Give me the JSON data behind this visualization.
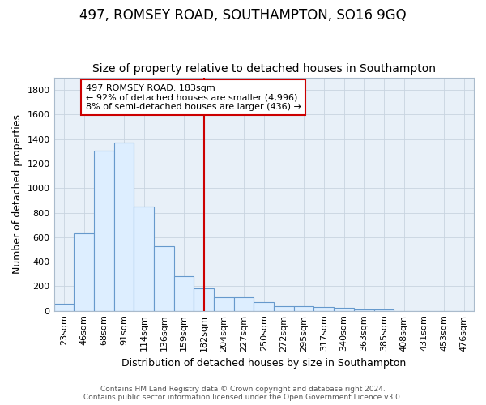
{
  "title": "497, ROMSEY ROAD, SOUTHAMPTON, SO16 9GQ",
  "subtitle": "Size of property relative to detached houses in Southampton",
  "xlabel": "Distribution of detached houses by size in Southampton",
  "ylabel": "Number of detached properties",
  "categories": [
    "23sqm",
    "46sqm",
    "68sqm",
    "91sqm",
    "114sqm",
    "136sqm",
    "159sqm",
    "182sqm",
    "204sqm",
    "227sqm",
    "250sqm",
    "272sqm",
    "295sqm",
    "317sqm",
    "340sqm",
    "363sqm",
    "385sqm",
    "408sqm",
    "431sqm",
    "453sqm",
    "476sqm"
  ],
  "values": [
    55,
    635,
    1305,
    1370,
    848,
    528,
    280,
    185,
    108,
    108,
    68,
    38,
    38,
    28,
    22,
    14,
    14,
    0,
    0,
    0,
    0
  ],
  "bar_facecolor": "#ddeeff",
  "bar_edgecolor": "#6699cc",
  "highlight_index": 7,
  "highlight_color": "#cc0000",
  "annotation_text": "497 ROMSEY ROAD: 183sqm\n← 92% of detached houses are smaller (4,996)\n8% of semi-detached houses are larger (436) →",
  "annotation_box_facecolor": "#ffffff",
  "annotation_box_edgecolor": "#cc0000",
  "ylim": [
    0,
    1900
  ],
  "yticks": [
    0,
    200,
    400,
    600,
    800,
    1000,
    1200,
    1400,
    1600,
    1800
  ],
  "grid_color": "#c8d4e0",
  "ax_bg_color": "#e8f0f8",
  "fig_bg_color": "#ffffff",
  "footer_line1": "Contains HM Land Registry data © Crown copyright and database right 2024.",
  "footer_line2": "Contains public sector information licensed under the Open Government Licence v3.0.",
  "title_fontsize": 12,
  "subtitle_fontsize": 10,
  "xlabel_fontsize": 9,
  "ylabel_fontsize": 9,
  "tick_fontsize": 8,
  "footer_fontsize": 6.5,
  "annot_fontsize": 8
}
